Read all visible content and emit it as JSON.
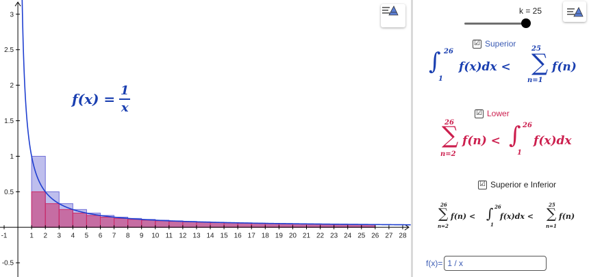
{
  "graphics": {
    "x_ticks": [
      "-1",
      "1",
      "2",
      "3",
      "4",
      "5",
      "6",
      "7",
      "8",
      "9",
      "10",
      "11",
      "12",
      "13",
      "14",
      "15",
      "16",
      "17",
      "18",
      "19",
      "20",
      "21",
      "22",
      "23",
      "24",
      "25",
      "26",
      "27",
      "28"
    ],
    "y_ticks": [
      "3",
      "2.5",
      "2",
      "1.5",
      "1",
      "0.5",
      "-0.5"
    ],
    "function_label": {
      "lhs": "f(x) =",
      "num": "1",
      "den": "x"
    },
    "colors": {
      "curve": "#1f3fd0",
      "upper": "#6f6fd8",
      "lower": "#cc2a66",
      "axis": "#000000"
    }
  },
  "chart_data": {
    "type": "bar",
    "function": "f(x) = 1/x",
    "k": 25,
    "series": [
      {
        "name": "Superior",
        "x_start": 1,
        "x_end": 26,
        "values": [
          1,
          0.5,
          0.3333,
          0.25,
          0.2,
          0.1667,
          0.1429,
          0.125,
          0.1111,
          0.1,
          0.0909,
          0.0833,
          0.0769,
          0.0714,
          0.0667,
          0.0625,
          0.0588,
          0.0556,
          0.0526,
          0.05,
          0.0476,
          0.0455,
          0.0435,
          0.0417,
          0.04
        ]
      },
      {
        "name": "Lower",
        "x_start": 1,
        "x_end": 26,
        "values": [
          0.5,
          0.3333,
          0.25,
          0.2,
          0.1667,
          0.1429,
          0.125,
          0.1111,
          0.1,
          0.0909,
          0.0833,
          0.0769,
          0.0714,
          0.0667,
          0.0625,
          0.0588,
          0.0556,
          0.0526,
          0.05,
          0.0476,
          0.0455,
          0.0435,
          0.0417,
          0.04,
          0.0385
        ]
      }
    ],
    "xlim": [
      -1.3,
      28.6
    ],
    "ylim": [
      -0.7,
      3.2
    ],
    "grid": false
  },
  "algebra": {
    "slider_label": "k = 25",
    "slider": {
      "min": 1,
      "max": 25,
      "value": 25
    },
    "checkboxes": {
      "superior": {
        "label": "Superior",
        "checked": "☑"
      },
      "lower": {
        "label": "Lower",
        "checked": "☑"
      },
      "both": {
        "label": "Superior e Inferior",
        "checked": "☑"
      }
    },
    "formula_superior": {
      "int_sym": "∫",
      "lower": "1",
      "upper": "26",
      "body": "f(x)dx <",
      "sum_sym": "∑",
      "sum_lower": "n=1",
      "sum_upper": "25",
      "sum_body": "f(n)"
    },
    "formula_lower": {
      "sum_sym": "∑",
      "sum_lower": "n=2",
      "sum_upper": "26",
      "sum_body": "f(n) <",
      "int_sym": "∫",
      "lower": "1",
      "upper": "26",
      "body": "f(x)dx"
    },
    "formula_both": {
      "sum_sym": "∑",
      "s1_lower": "n=2",
      "s1_upper": "26",
      "s1_body": "f(n) <",
      "int_sym": "∫",
      "i_lower": "1",
      "i_upper": "26",
      "i_body": "f(x)dx <",
      "s2_lower": "n=1",
      "s2_upper": "25",
      "s2_body": "f(n)"
    },
    "input": {
      "label": "f(x)=",
      "value": "1 / x"
    },
    "colors": {
      "superior": "#1a3fb0",
      "lower": "#cc1f4e",
      "both": "#222222"
    }
  }
}
